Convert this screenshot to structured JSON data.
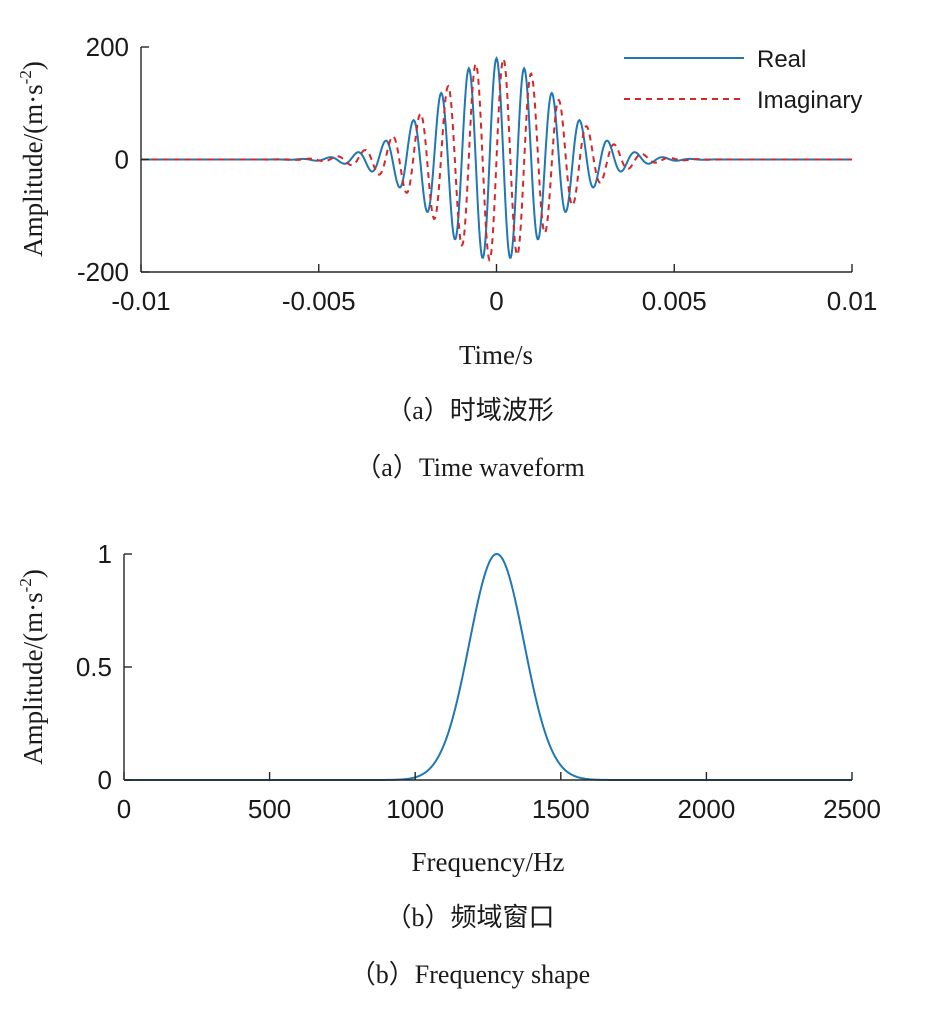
{
  "chart_data": [
    {
      "type": "line",
      "xlabel": "Time/s",
      "ylabel": "Amplitude/(m·s",
      "ylabel_sup": "-2",
      "ylabel_close": ")",
      "xlim": [
        -0.01,
        0.01
      ],
      "ylim": [
        -200,
        200
      ],
      "xticks": [
        -0.01,
        -0.005,
        0,
        0.005,
        0.01
      ],
      "xtick_labels": [
        "-0.01",
        "-0.005",
        "0",
        "0.005",
        "0.01"
      ],
      "yticks": [
        -200,
        0,
        200
      ],
      "ytick_labels": [
        "-200",
        "0",
        "200"
      ],
      "legend_position": "top-right",
      "signal": {
        "peak_amplitude": 180,
        "center_frequency_hz": 1280,
        "envelope_sigma_s": 0.0017
      },
      "series": [
        {
          "name": "Real",
          "style": "solid",
          "color": "#1f77b4"
        },
        {
          "name": "Imaginary",
          "style": "dashed",
          "color": "#d62728"
        }
      ],
      "caption_cn": "（a）时域波形",
      "caption_en": "（a）Time waveform"
    },
    {
      "type": "line",
      "xlabel": "Frequency/Hz",
      "ylabel": "Amplitude/(m·s",
      "ylabel_sup": "-2",
      "ylabel_close": ")",
      "xlim": [
        0,
        2500
      ],
      "ylim": [
        0,
        1
      ],
      "xticks": [
        0,
        500,
        1000,
        1500,
        2000,
        2500
      ],
      "xtick_labels": [
        "0",
        "500",
        "1000",
        "1500",
        "2000",
        "2500"
      ],
      "yticks": [
        0,
        0.5,
        1
      ],
      "ytick_labels": [
        "0",
        "0.5",
        "1"
      ],
      "signal": {
        "peak_amplitude": 1,
        "center_frequency_hz": 1280,
        "sigma_hz": 94
      },
      "series": [
        {
          "style": "solid",
          "color": "#1f77b4"
        }
      ],
      "caption_cn": "（b）频域窗口",
      "caption_en": "（b）Frequency shape"
    }
  ]
}
